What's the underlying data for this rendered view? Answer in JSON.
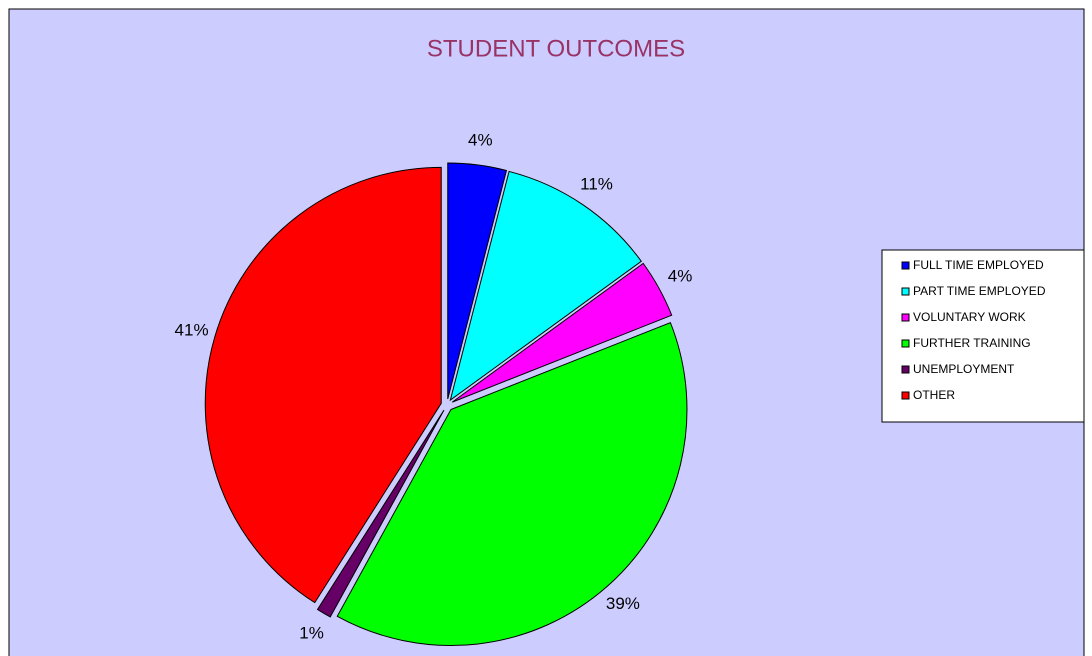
{
  "chart_data": {
    "type": "pie",
    "title": "STUDENT OUTCOMES",
    "categories": [
      "FULL TIME EMPLOYED",
      "PART TIME EMPLOYED",
      "VOLUNTARY WORK",
      "FURTHER TRAINING",
      "UNEMPLOYMENT",
      "OTHER"
    ],
    "values": [
      4,
      11,
      4,
      39,
      1,
      41
    ],
    "value_labels": [
      "4%",
      "11%",
      "4%",
      "39%",
      "1%",
      "41%"
    ],
    "colors": [
      "#0000ff",
      "#00ffff",
      "#ff00ff",
      "#00ff00",
      "#660066",
      "#ff0000"
    ],
    "legend": "right"
  }
}
